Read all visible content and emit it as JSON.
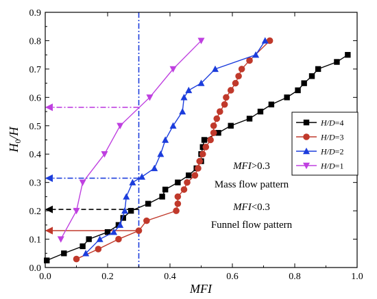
{
  "chart_data": {
    "type": "scatter",
    "xlabel": "MFI",
    "ylabel_main": "H",
    "ylabel_sub": "0",
    "ylabel_tail": "/H",
    "xlim": [
      0.0,
      1.0
    ],
    "ylim": [
      0.0,
      0.9
    ],
    "x_ticks": [
      "0.0",
      "0.2",
      "0.4",
      "0.6",
      "0.8",
      "1.0"
    ],
    "x_tick_values": [
      0.0,
      0.2,
      0.4,
      0.6,
      0.8,
      1.0
    ],
    "y_ticks": [
      "0.0",
      "0.1",
      "0.2",
      "0.3",
      "0.4",
      "0.5",
      "0.6",
      "0.7",
      "0.8",
      "0.9"
    ],
    "y_tick_values": [
      0.0,
      0.1,
      0.2,
      0.3,
      0.4,
      0.5,
      0.6,
      0.7,
      0.8,
      0.9
    ],
    "grid": false,
    "legend_position": "right",
    "series": [
      {
        "name": "H/D=4",
        "label_italic": "H/D",
        "label_rest": "=4",
        "color": "#000000",
        "marker": "square",
        "points": [
          [
            0.005,
            0.025
          ],
          [
            0.06,
            0.05
          ],
          [
            0.12,
            0.075
          ],
          [
            0.14,
            0.1
          ],
          [
            0.2,
            0.125
          ],
          [
            0.235,
            0.15
          ],
          [
            0.25,
            0.175
          ],
          [
            0.275,
            0.2
          ],
          [
            0.33,
            0.225
          ],
          [
            0.375,
            0.25
          ],
          [
            0.385,
            0.275
          ],
          [
            0.425,
            0.3
          ],
          [
            0.46,
            0.325
          ],
          [
            0.485,
            0.35
          ],
          [
            0.5,
            0.375
          ],
          [
            0.5,
            0.4
          ],
          [
            0.505,
            0.425
          ],
          [
            0.51,
            0.45
          ],
          [
            0.555,
            0.475
          ],
          [
            0.595,
            0.5
          ],
          [
            0.655,
            0.525
          ],
          [
            0.69,
            0.55
          ],
          [
            0.725,
            0.575
          ],
          [
            0.775,
            0.6
          ],
          [
            0.81,
            0.625
          ],
          [
            0.83,
            0.65
          ],
          [
            0.855,
            0.675
          ],
          [
            0.875,
            0.7
          ],
          [
            0.935,
            0.725
          ],
          [
            0.97,
            0.75
          ]
        ]
      },
      {
        "name": "H/D=3",
        "label_italic": "H/D",
        "label_rest": "=3",
        "color": "#c0392b",
        "marker": "circle",
        "points": [
          [
            0.1,
            0.03
          ],
          [
            0.17,
            0.065
          ],
          [
            0.235,
            0.1
          ],
          [
            0.3,
            0.13
          ],
          [
            0.325,
            0.165
          ],
          [
            0.42,
            0.2
          ],
          [
            0.425,
            0.225
          ],
          [
            0.425,
            0.25
          ],
          [
            0.445,
            0.275
          ],
          [
            0.455,
            0.3
          ],
          [
            0.48,
            0.325
          ],
          [
            0.49,
            0.35
          ],
          [
            0.495,
            0.375
          ],
          [
            0.505,
            0.4
          ],
          [
            0.515,
            0.425
          ],
          [
            0.53,
            0.45
          ],
          [
            0.54,
            0.475
          ],
          [
            0.54,
            0.5
          ],
          [
            0.55,
            0.525
          ],
          [
            0.56,
            0.55
          ],
          [
            0.575,
            0.575
          ],
          [
            0.58,
            0.6
          ],
          [
            0.595,
            0.625
          ],
          [
            0.61,
            0.65
          ],
          [
            0.62,
            0.675
          ],
          [
            0.63,
            0.7
          ],
          [
            0.655,
            0.73
          ],
          [
            0.72,
            0.8
          ]
        ]
      },
      {
        "name": "H/D=2",
        "label_italic": "H/D",
        "label_rest": "=2",
        "color": "#1c3ddc",
        "marker": "triangle-up",
        "points": [
          [
            0.13,
            0.05
          ],
          [
            0.175,
            0.1
          ],
          [
            0.22,
            0.125
          ],
          [
            0.24,
            0.15
          ],
          [
            0.255,
            0.2
          ],
          [
            0.26,
            0.25
          ],
          [
            0.28,
            0.3
          ],
          [
            0.31,
            0.32
          ],
          [
            0.35,
            0.35
          ],
          [
            0.37,
            0.4
          ],
          [
            0.385,
            0.45
          ],
          [
            0.41,
            0.5
          ],
          [
            0.44,
            0.55
          ],
          [
            0.445,
            0.6
          ],
          [
            0.46,
            0.625
          ],
          [
            0.5,
            0.65
          ],
          [
            0.545,
            0.7
          ],
          [
            0.675,
            0.75
          ],
          [
            0.705,
            0.8
          ]
        ]
      },
      {
        "name": "H/D=1",
        "label_italic": "H/D",
        "label_rest": "=1",
        "color": "#bf40e0",
        "marker": "triangle-down",
        "points": [
          [
            0.05,
            0.1
          ],
          [
            0.1,
            0.2
          ],
          [
            0.12,
            0.3
          ],
          [
            0.19,
            0.4
          ],
          [
            0.24,
            0.5
          ],
          [
            0.335,
            0.6
          ],
          [
            0.41,
            0.7
          ],
          [
            0.5,
            0.8
          ]
        ]
      }
    ],
    "reference_lines": [
      {
        "orientation": "vertical",
        "x": 0.3,
        "color": "#1c3ddc",
        "style": "dashdot"
      },
      {
        "orientation": "horizontal-arrow",
        "y": 0.565,
        "x_from": 0.3,
        "color": "#bf40e0",
        "style": "dashdot"
      },
      {
        "orientation": "horizontal-arrow",
        "y": 0.315,
        "x_from": 0.3,
        "color": "#1c3ddc",
        "style": "dashdot"
      },
      {
        "orientation": "horizontal-arrow",
        "y": 0.205,
        "x_from": 0.3,
        "color": "#000000",
        "style": "dashed"
      },
      {
        "orientation": "horizontal-arrow",
        "y": 0.13,
        "x_from": 0.3,
        "color": "#c0392b",
        "style": "solid"
      }
    ],
    "annotations": [
      {
        "italic": "MFI",
        "rest": ">0.3",
        "x": 0.59
      },
      {
        "text": "Mass flow pattern",
        "x": 0.59
      },
      {
        "italic": "MFI",
        "rest": "<0.3",
        "x": 0.59
      },
      {
        "text": "Funnel flow pattern",
        "x": 0.59
      }
    ]
  }
}
